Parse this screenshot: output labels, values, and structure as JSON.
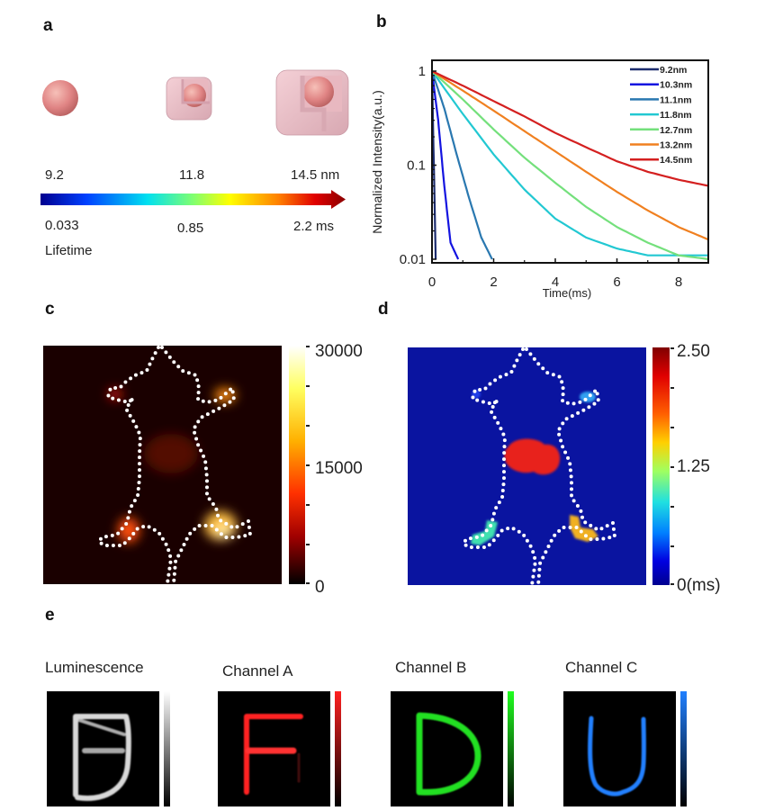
{
  "panels": {
    "a": {
      "label": "a",
      "size_labels": [
        "9.2",
        "11.8",
        "14.5 nm"
      ],
      "lifetime_labels": [
        "0.033",
        "0.85",
        "2.2 ms"
      ],
      "lifetime_title": "Lifetime",
      "gradient_colors": [
        "#00008f",
        "#0050ff",
        "#00e0e0",
        "#80ff60",
        "#ffff00",
        "#ff8000",
        "#e00000",
        "#8b0000"
      ],
      "particle_color": "#e89090",
      "shell_color": "#f0c0c8"
    },
    "b": {
      "label": "b"
    },
    "c": {
      "label": "c",
      "colorbar_ticks": [
        "30000",
        "15000",
        "0"
      ],
      "background": "#1a0000",
      "colormap": "hot"
    },
    "d": {
      "label": "d",
      "colorbar_ticks": [
        "2.50",
        "1.25",
        "0(ms)"
      ],
      "background": "#0a14a0",
      "colormap": "jet"
    },
    "e": {
      "label": "e",
      "channels": [
        {
          "title": "Luminescence",
          "letter": "D",
          "color": "#e0e0e0"
        },
        {
          "title": "Channel A",
          "letter": "F",
          "color": "#ff2020"
        },
        {
          "title": "Channel B",
          "letter": "D",
          "color": "#20e020"
        },
        {
          "title": "Channel C",
          "letter": "U",
          "color": "#2080ff"
        }
      ]
    }
  },
  "chart_data": {
    "type": "line",
    "xlabel": "Time(ms)",
    "ylabel": "Normalized Intensity(a.u.)",
    "xlim": [
      0,
      9
    ],
    "ylim": [
      0.01,
      1
    ],
    "yscale": "log",
    "xticks": [
      "0",
      "2",
      "4",
      "6",
      "8"
    ],
    "yticks": [
      "1",
      "0.1",
      "0.01"
    ],
    "grid": false,
    "legend": "top-right",
    "series": [
      {
        "name": "9.2nm",
        "color": "#1c2c6e",
        "x": [
          0,
          0.12
        ],
        "y": [
          1,
          0.01
        ]
      },
      {
        "name": "10.3nm",
        "color": "#1414e0",
        "x": [
          0,
          0.2,
          0.4,
          0.6,
          0.85
        ],
        "y": [
          1,
          0.3,
          0.06,
          0.015,
          0.01
        ]
      },
      {
        "name": "11.1nm",
        "color": "#2a78b0",
        "x": [
          0,
          0.4,
          0.8,
          1.2,
          1.6,
          1.95
        ],
        "y": [
          1,
          0.4,
          0.13,
          0.045,
          0.017,
          0.01
        ]
      },
      {
        "name": "11.8nm",
        "color": "#22c8d2",
        "x": [
          0,
          1,
          2,
          3,
          4,
          5,
          6,
          7,
          9
        ],
        "y": [
          1,
          0.35,
          0.13,
          0.055,
          0.027,
          0.017,
          0.013,
          0.011,
          0.011
        ]
      },
      {
        "name": "12.7nm",
        "color": "#74e07c",
        "x": [
          0,
          1,
          2,
          3,
          4,
          5,
          6,
          7,
          8,
          9
        ],
        "y": [
          1,
          0.5,
          0.24,
          0.12,
          0.065,
          0.036,
          0.022,
          0.015,
          0.011,
          0.01
        ]
      },
      {
        "name": "13.2nm",
        "color": "#f08020",
        "x": [
          0,
          1,
          2,
          3,
          4,
          5,
          6,
          7,
          8,
          9
        ],
        "y": [
          1,
          0.62,
          0.38,
          0.23,
          0.14,
          0.085,
          0.052,
          0.033,
          0.022,
          0.016
        ]
      },
      {
        "name": "14.5nm",
        "color": "#d42020",
        "x": [
          0,
          1,
          2,
          3,
          4,
          5,
          6,
          7,
          8,
          9
        ],
        "y": [
          1,
          0.7,
          0.48,
          0.33,
          0.22,
          0.155,
          0.11,
          0.085,
          0.07,
          0.06
        ]
      }
    ]
  }
}
